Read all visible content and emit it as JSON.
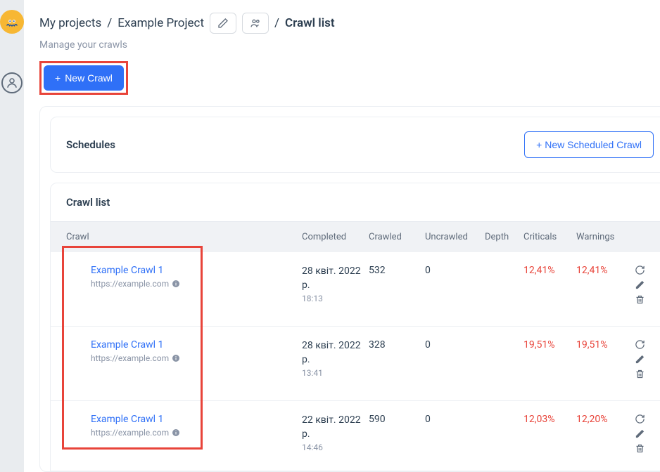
{
  "breadcrumb": {
    "root": "My projects",
    "project": "Example Project",
    "current": "Crawl list"
  },
  "subtitle": "Manage your crawls",
  "buttons": {
    "new_crawl": "New Crawl",
    "new_scheduled": "New Scheduled Crawl"
  },
  "panels": {
    "schedules_title": "Schedules",
    "crawl_list_title": "Crawl list"
  },
  "columns": {
    "crawl": "Crawl",
    "completed": "Completed",
    "crawled": "Crawled",
    "uncrawled": "Uncrawled",
    "depth": "Depth",
    "criticals": "Criticals",
    "warnings": "Warnings"
  },
  "rows": [
    {
      "name": "Example Crawl 1",
      "url": "https://example.com",
      "completed_date": "28 квіт. 2022 р.",
      "completed_time": "18:13",
      "crawled": "532",
      "uncrawled": "0",
      "depth": "",
      "criticals": "12,41%",
      "warnings": "12,41%"
    },
    {
      "name": "Example Crawl 1",
      "url": "https://example.com",
      "completed_date": "28 квіт. 2022 р.",
      "completed_time": "13:41",
      "crawled": "328",
      "uncrawled": "0",
      "depth": "",
      "criticals": "19,51%",
      "warnings": "19,51%"
    },
    {
      "name": "Example Crawl 1",
      "url": "https://example.com",
      "completed_date": "22 квіт. 2022 р.",
      "completed_time": "14:46",
      "crawled": "590",
      "uncrawled": "0",
      "depth": "",
      "criticals": "12,03%",
      "warnings": "12,20%"
    }
  ],
  "colors": {
    "primary": "#2f70f7",
    "danger": "#e8443a",
    "text": "#2c3e50",
    "muted": "#8a94a6",
    "rail": "#e9ecef",
    "header_bg": "#f0f2f5",
    "border": "#eceff3"
  },
  "highlight_boxes": [
    {
      "target": "new-crawl-button",
      "color": "#e8443a"
    },
    {
      "target": "crawl-names-column",
      "color": "#e8443a"
    }
  ]
}
